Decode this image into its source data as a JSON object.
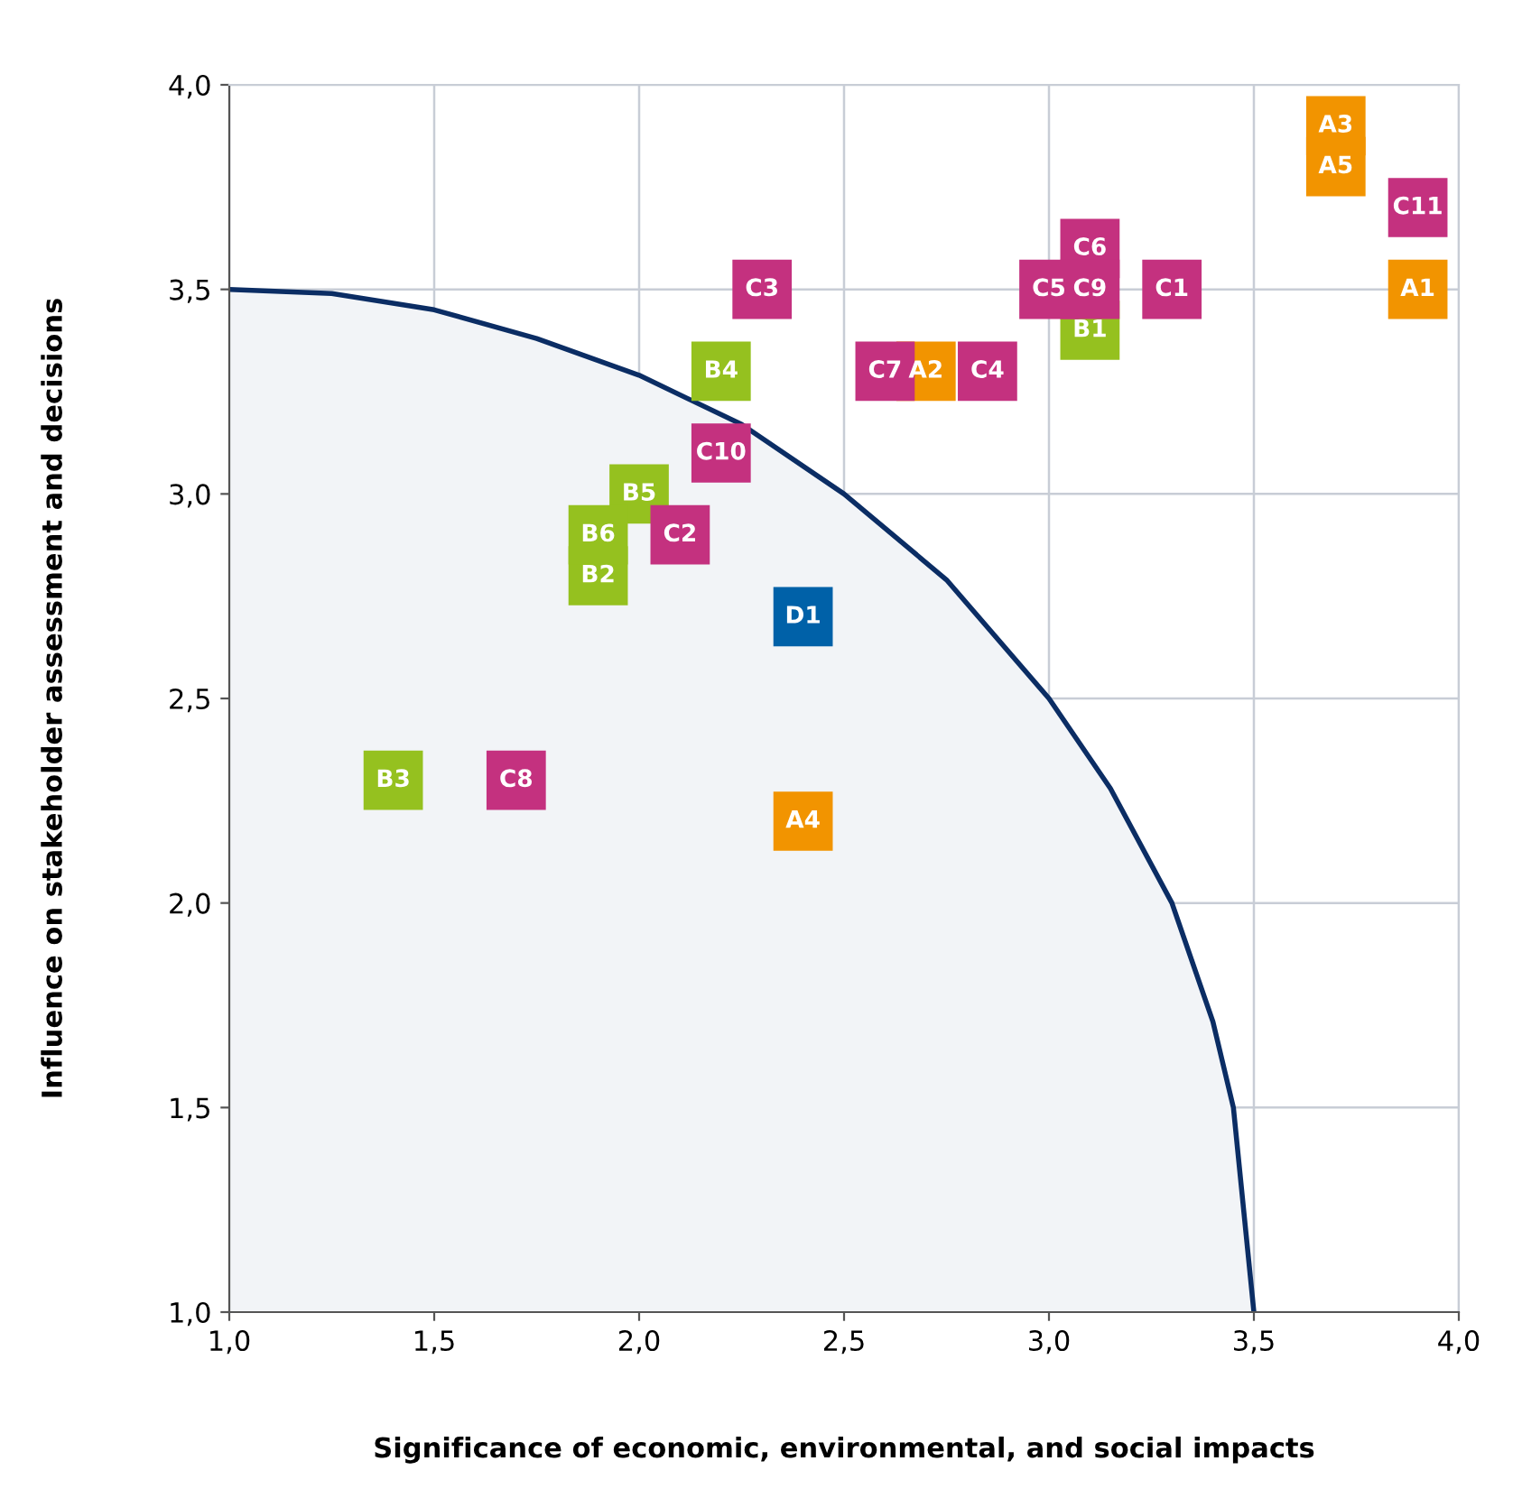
{
  "chart_data": {
    "type": "scatter",
    "xlabel": "Significance of economic, environmental, and social impacts",
    "ylabel": "Influence on stakeholder assessment and decisions",
    "xlim": [
      1.0,
      4.0
    ],
    "ylim": [
      1.0,
      4.0
    ],
    "xticks": [
      {
        "value": 1.0,
        "label": "1,0"
      },
      {
        "value": 1.5,
        "label": "1,5"
      },
      {
        "value": 2.0,
        "label": "2,0"
      },
      {
        "value": 2.5,
        "label": "2,5"
      },
      {
        "value": 3.0,
        "label": "3,0"
      },
      {
        "value": 3.5,
        "label": "3,5"
      },
      {
        "value": 4.0,
        "label": "4,0"
      }
    ],
    "yticks": [
      {
        "value": 1.0,
        "label": "1,0"
      },
      {
        "value": 1.5,
        "label": "1,5"
      },
      {
        "value": 2.0,
        "label": "2,0"
      },
      {
        "value": 2.5,
        "label": "2,5"
      },
      {
        "value": 3.0,
        "label": "3,0"
      },
      {
        "value": 3.5,
        "label": "3,5"
      },
      {
        "value": 4.0,
        "label": "4,0"
      }
    ],
    "grid": true,
    "marker": "square",
    "series": [
      {
        "type": "area",
        "color": "#0b2d64",
        "marker": "none",
        "x": [
          1.0,
          1.25,
          1.5,
          1.75,
          2.0,
          2.25,
          2.5,
          2.75,
          3.0,
          3.15,
          3.3,
          3.4,
          3.45,
          3.5
        ],
        "values": [
          3.5,
          3.49,
          3.45,
          3.38,
          3.29,
          3.17,
          3.0,
          2.79,
          2.5,
          2.28,
          2.0,
          1.71,
          1.5,
          1.0
        ]
      },
      {
        "color": "#f29400",
        "x": [
          3.9,
          2.7,
          3.7,
          2.4,
          3.7
        ],
        "values": [
          3.5,
          3.3,
          3.9,
          2.2,
          3.8
        ],
        "value_labels": [
          "A1",
          "A2",
          "A3",
          "A4",
          "A5"
        ]
      },
      {
        "color": "#95c11f",
        "x": [
          3.1,
          1.9,
          1.4,
          2.2,
          2.0,
          1.9
        ],
        "values": [
          3.4,
          2.8,
          2.3,
          3.3,
          3.0,
          2.9
        ],
        "value_labels": [
          "B1",
          "B2",
          "B3",
          "B4",
          "B5",
          "B6"
        ]
      },
      {
        "color": "#c4317f",
        "x": [
          3.3,
          2.1,
          2.3,
          2.85,
          3.0,
          3.1,
          2.6,
          1.7,
          3.1,
          2.2,
          3.9
        ],
        "values": [
          3.5,
          2.9,
          3.5,
          3.3,
          3.5,
          3.6,
          3.3,
          2.3,
          3.5,
          3.1,
          3.7
        ],
        "value_labels": [
          "C1",
          "C2",
          "C3",
          "C4",
          "C5",
          "C6",
          "C7",
          "C8",
          "C9",
          "C10",
          "C11"
        ]
      },
      {
        "color": "#0061a8",
        "x": [
          2.4
        ],
        "values": [
          2.7
        ],
        "value_labels": [
          "D1"
        ]
      }
    ]
  }
}
